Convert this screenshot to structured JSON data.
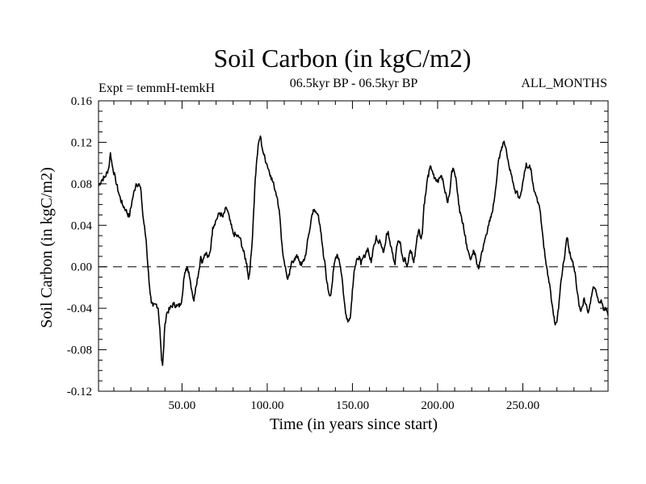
{
  "chart_data": {
    "type": "line",
    "title": "Soil Carbon (in kgC/m2)",
    "left_label": "Expt = temmH-temkH",
    "center_label": "06.5kyr BP - 06.5kyr BP",
    "right_label": "ALL_MONTHS",
    "xlabel": "Time (in years since start)",
    "ylabel": "Soil Carbon (in kgC/m2)",
    "xlim": [
      1,
      300
    ],
    "ylim": [
      -0.12,
      0.16
    ],
    "x_ticks": [
      50,
      100,
      150,
      200,
      250
    ],
    "x_tick_labels": [
      "50.00",
      "100.00",
      "150.00",
      "200.00",
      "250.00"
    ],
    "y_ticks": [
      -0.12,
      -0.08,
      -0.04,
      0.0,
      0.04,
      0.08,
      0.12,
      0.16
    ],
    "y_tick_labels": [
      "-0.12",
      "-0.08",
      "-0.04",
      "0.00",
      "0.04",
      "0.08",
      "0.12",
      "0.16"
    ],
    "reference_line": 0.0,
    "series": [
      {
        "name": "Soil Carbon",
        "color": "#000000",
        "points": [
          [
            1,
            0.078
          ],
          [
            3,
            0.084
          ],
          [
            5,
            0.087
          ],
          [
            7,
            0.095
          ],
          [
            8,
            0.11
          ],
          [
            9,
            0.098
          ],
          [
            11,
            0.084
          ],
          [
            13,
            0.07
          ],
          [
            15,
            0.06
          ],
          [
            17,
            0.055
          ],
          [
            19,
            0.048
          ],
          [
            21,
            0.066
          ],
          [
            23,
            0.08
          ],
          [
            25,
            0.079
          ],
          [
            26,
            0.072
          ],
          [
            27,
            0.05
          ],
          [
            29,
            0.025
          ],
          [
            30,
            0.0
          ],
          [
            31,
            -0.02
          ],
          [
            32,
            -0.035
          ],
          [
            33,
            -0.038
          ],
          [
            35,
            -0.036
          ],
          [
            36,
            -0.04
          ],
          [
            37,
            -0.06
          ],
          [
            38,
            -0.09
          ],
          [
            38.6,
            -0.095
          ],
          [
            39,
            -0.085
          ],
          [
            40,
            -0.055
          ],
          [
            41,
            -0.045
          ],
          [
            43,
            -0.04
          ],
          [
            45,
            -0.036
          ],
          [
            47,
            -0.038
          ],
          [
            49,
            -0.037
          ],
          [
            50,
            -0.03
          ],
          [
            51,
            -0.012
          ],
          [
            52,
            -0.005
          ],
          [
            53,
            0.0
          ],
          [
            54,
            -0.005
          ],
          [
            55,
            -0.015
          ],
          [
            56,
            -0.025
          ],
          [
            57,
            -0.033
          ],
          [
            58,
            -0.02
          ],
          [
            60,
            -0.003
          ],
          [
            61,
            0.01
          ],
          [
            62,
            0.004
          ],
          [
            63,
            0.01
          ],
          [
            64,
            0.013
          ],
          [
            65,
            0.009
          ],
          [
            66,
            0.012
          ],
          [
            67,
            0.02
          ],
          [
            68,
            0.038
          ],
          [
            70,
            0.045
          ],
          [
            72,
            0.052
          ],
          [
            74,
            0.048
          ],
          [
            76,
            0.057
          ],
          [
            77,
            0.053
          ],
          [
            78,
            0.045
          ],
          [
            80,
            0.032
          ],
          [
            82,
            0.03
          ],
          [
            84,
            0.028
          ],
          [
            86,
            0.015
          ],
          [
            88,
            0.003
          ],
          [
            89,
            -0.012
          ],
          [
            90,
            0.0
          ],
          [
            91,
            0.02
          ],
          [
            92,
            0.052
          ],
          [
            93,
            0.085
          ],
          [
            94,
            0.105
          ],
          [
            95,
            0.12
          ],
          [
            96,
            0.126
          ],
          [
            97,
            0.115
          ],
          [
            98,
            0.108
          ],
          [
            100,
            0.098
          ],
          [
            102,
            0.088
          ],
          [
            104,
            0.078
          ],
          [
            105,
            0.072
          ],
          [
            106,
            0.066
          ],
          [
            107,
            0.055
          ],
          [
            108,
            0.035
          ],
          [
            109,
            0.015
          ],
          [
            110,
            0.005
          ],
          [
            111,
            -0.004
          ],
          [
            112,
            -0.012
          ],
          [
            113,
            -0.008
          ],
          [
            114,
            0.002
          ],
          [
            116,
            0.008
          ],
          [
            118,
            0.01
          ],
          [
            119,
            0.005
          ],
          [
            120,
            0.001
          ],
          [
            121,
            0.005
          ],
          [
            122,
            0.008
          ],
          [
            123,
            0.016
          ],
          [
            124,
            0.028
          ],
          [
            125,
            0.036
          ],
          [
            126,
            0.048
          ],
          [
            127,
            0.055
          ],
          [
            128,
            0.053
          ],
          [
            130,
            0.05
          ],
          [
            131,
            0.04
          ],
          [
            132,
            0.025
          ],
          [
            133,
            0.01
          ],
          [
            134,
            0.002
          ],
          [
            135,
            -0.015
          ],
          [
            136,
            -0.024
          ],
          [
            137,
            -0.028
          ],
          [
            138,
            -0.018
          ],
          [
            139,
            -0.002
          ],
          [
            140,
            0.008
          ],
          [
            141,
            0.012
          ],
          [
            142,
            0.008
          ],
          [
            143,
            0.0
          ],
          [
            144,
            -0.012
          ],
          [
            145,
            -0.03
          ],
          [
            146,
            -0.045
          ],
          [
            147,
            -0.05
          ],
          [
            148,
            -0.052
          ],
          [
            149,
            -0.045
          ],
          [
            150,
            -0.022
          ],
          [
            151,
            -0.004
          ],
          [
            152,
            0.002
          ],
          [
            153,
            0.008
          ],
          [
            154,
            0.01
          ],
          [
            155,
            0.002
          ],
          [
            156,
            0.008
          ],
          [
            157,
            0.01
          ],
          [
            158,
            0.014
          ],
          [
            159,
            0.018
          ],
          [
            160,
            0.01
          ],
          [
            161,
            0.004
          ],
          [
            162,
            0.016
          ],
          [
            163,
            0.022
          ],
          [
            164,
            0.03
          ],
          [
            165,
            0.024
          ],
          [
            166,
            0.026
          ],
          [
            167,
            0.02
          ],
          [
            168,
            0.014
          ],
          [
            169,
            0.02
          ],
          [
            170,
            0.032
          ],
          [
            171,
            0.034
          ],
          [
            172,
            0.024
          ],
          [
            173,
            0.018
          ],
          [
            174,
            0.008
          ],
          [
            175,
            0.002
          ],
          [
            176,
            0.02
          ],
          [
            177,
            0.025
          ],
          [
            178,
            0.024
          ],
          [
            179,
            0.012
          ],
          [
            180,
            0.005
          ],
          [
            181,
            0.008
          ],
          [
            182,
            0.0
          ],
          [
            183,
            0.008
          ],
          [
            184,
            0.016
          ],
          [
            185,
            0.012
          ],
          [
            186,
            0.004
          ],
          [
            187,
            0.016
          ],
          [
            188,
            0.03
          ],
          [
            189,
            0.036
          ],
          [
            190,
            0.028
          ],
          [
            191,
            0.032
          ],
          [
            192,
            0.06
          ],
          [
            193,
            0.07
          ],
          [
            194,
            0.085
          ],
          [
            196,
            0.097
          ],
          [
            197,
            0.092
          ],
          [
            198,
            0.085
          ],
          [
            200,
            0.082
          ],
          [
            202,
            0.088
          ],
          [
            203,
            0.085
          ],
          [
            204,
            0.075
          ],
          [
            205,
            0.07
          ],
          [
            206,
            0.062
          ],
          [
            207,
            0.07
          ],
          [
            208,
            0.088
          ],
          [
            209,
            0.095
          ],
          [
            210,
            0.09
          ],
          [
            211,
            0.082
          ],
          [
            212,
            0.068
          ],
          [
            213,
            0.052
          ],
          [
            214,
            0.048
          ],
          [
            215,
            0.042
          ],
          [
            216,
            0.03
          ],
          [
            217,
            0.022
          ],
          [
            218,
            0.015
          ],
          [
            219,
            0.008
          ],
          [
            220,
            0.01
          ],
          [
            221,
            0.016
          ],
          [
            222,
            0.013
          ],
          [
            223,
            0.002
          ],
          [
            224,
            -0.002
          ],
          [
            225,
            0.005
          ],
          [
            226,
            0.015
          ],
          [
            227,
            0.022
          ],
          [
            228,
            0.028
          ],
          [
            229,
            0.032
          ],
          [
            230,
            0.04
          ],
          [
            231,
            0.048
          ],
          [
            232,
            0.052
          ],
          [
            233,
            0.062
          ],
          [
            234,
            0.075
          ],
          [
            235,
            0.09
          ],
          [
            236,
            0.105
          ],
          [
            237,
            0.112
          ],
          [
            238,
            0.115
          ],
          [
            239,
            0.121
          ],
          [
            240,
            0.115
          ],
          [
            241,
            0.104
          ],
          [
            242,
            0.096
          ],
          [
            243,
            0.09
          ],
          [
            244,
            0.082
          ],
          [
            245,
            0.075
          ],
          [
            246,
            0.072
          ],
          [
            247,
            0.07
          ],
          [
            248,
            0.066
          ],
          [
            249,
            0.072
          ],
          [
            250,
            0.082
          ],
          [
            251,
            0.092
          ],
          [
            252,
            0.1
          ],
          [
            253,
            0.095
          ],
          [
            254,
            0.098
          ],
          [
            255,
            0.092
          ],
          [
            256,
            0.08
          ],
          [
            257,
            0.072
          ],
          [
            258,
            0.068
          ],
          [
            259,
            0.062
          ],
          [
            260,
            0.055
          ],
          [
            261,
            0.04
          ],
          [
            262,
            0.025
          ],
          [
            263,
            0.01
          ],
          [
            264,
            0.0
          ],
          [
            265,
            -0.01
          ],
          [
            266,
            -0.02
          ],
          [
            267,
            -0.035
          ],
          [
            268,
            -0.047
          ],
          [
            269,
            -0.056
          ],
          [
            270,
            -0.053
          ],
          [
            271,
            -0.04
          ],
          [
            272,
            -0.02
          ],
          [
            273,
            -0.008
          ],
          [
            274,
            0.005
          ],
          [
            275,
            0.018
          ],
          [
            276,
            0.028
          ],
          [
            277,
            0.018
          ],
          [
            278,
            0.01
          ],
          [
            279,
            0.005
          ],
          [
            280,
            0.0
          ],
          [
            281,
            -0.01
          ],
          [
            282,
            -0.025
          ],
          [
            283,
            -0.038
          ],
          [
            284,
            -0.043
          ],
          [
            285,
            -0.038
          ],
          [
            286,
            -0.03
          ],
          [
            287,
            -0.036
          ],
          [
            288,
            -0.043
          ],
          [
            289,
            -0.04
          ],
          [
            290,
            -0.03
          ],
          [
            291,
            -0.022
          ],
          [
            292,
            -0.02
          ],
          [
            293,
            -0.024
          ],
          [
            294,
            -0.03
          ],
          [
            295,
            -0.034
          ],
          [
            296,
            -0.032
          ],
          [
            297,
            -0.038
          ],
          [
            298,
            -0.042
          ],
          [
            299,
            -0.04
          ],
          [
            300,
            -0.047
          ]
        ]
      }
    ]
  }
}
